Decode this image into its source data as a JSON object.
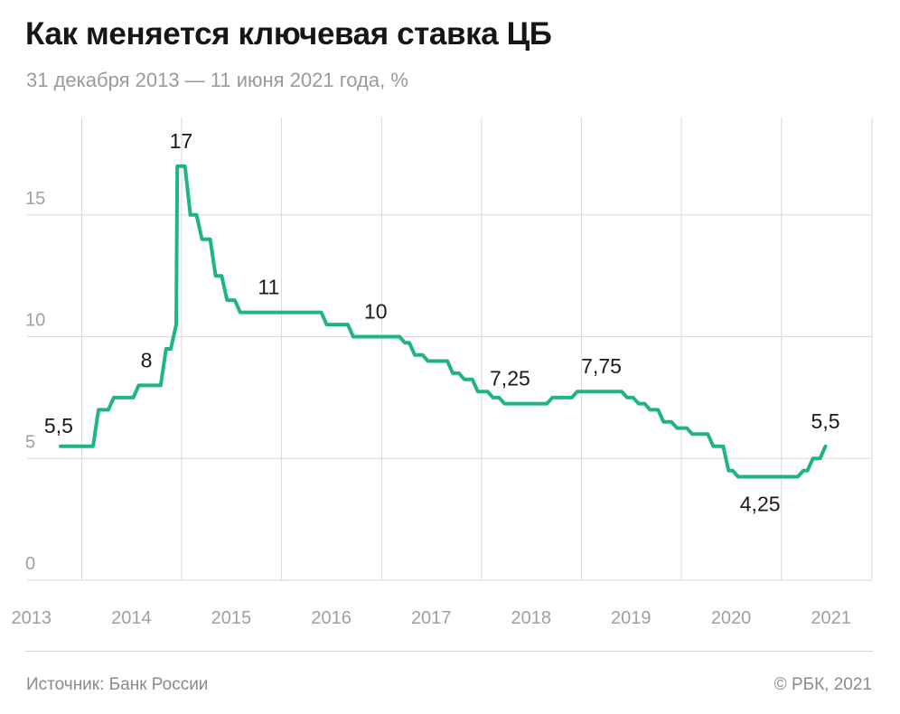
{
  "title": "Как меняется ключевая ставка ЦБ",
  "subtitle": "31 декабря 2013 — 11 июня 2021 года, %",
  "footer": {
    "source": "Источник: Банк России",
    "copyright": "© РБК, 2021"
  },
  "colors": {
    "line": "#1fb57e",
    "grid": "#dadada",
    "axis_text": "#a0a0a0",
    "label_text": "#1a1a1a"
  },
  "chart_data": {
    "type": "line",
    "title": "Как меняется ключевая ставка ЦБ",
    "subtitle": "31 декабря 2013 — 11 июня 2021 года, %",
    "x_type": "date",
    "xlim": [
      "2013-01-01",
      "2021-12-31"
    ],
    "ylim": [
      0,
      19
    ],
    "yticks": [
      0,
      5,
      10,
      15
    ],
    "ytick_labels": [
      "0",
      "5",
      "10",
      "15"
    ],
    "xticks": [
      "2013",
      "2014",
      "2015",
      "2016",
      "2017",
      "2018",
      "2019",
      "2020",
      "2021"
    ],
    "grid": true,
    "legend": "none",
    "series": [
      {
        "step": true,
        "points": [
          [
            "2013-10-15",
            5.5
          ],
          [
            "2014-03-03",
            7.0
          ],
          [
            "2014-04-28",
            7.5
          ],
          [
            "2014-07-28",
            8.0
          ],
          [
            "2014-11-05",
            9.5
          ],
          [
            "2014-12-12",
            10.5
          ],
          [
            "2014-12-16",
            17.0
          ],
          [
            "2015-02-02",
            15.0
          ],
          [
            "2015-03-16",
            14.0
          ],
          [
            "2015-05-05",
            12.5
          ],
          [
            "2015-06-16",
            11.5
          ],
          [
            "2015-08-03",
            11.0
          ],
          [
            "2016-06-14",
            10.5
          ],
          [
            "2016-09-19",
            10.0
          ],
          [
            "2017-03-27",
            9.75
          ],
          [
            "2017-05-02",
            9.25
          ],
          [
            "2017-06-19",
            9.0
          ],
          [
            "2017-09-18",
            8.5
          ],
          [
            "2017-10-30",
            8.25
          ],
          [
            "2017-12-18",
            7.75
          ],
          [
            "2018-02-12",
            7.5
          ],
          [
            "2018-03-26",
            7.25
          ],
          [
            "2018-09-17",
            7.5
          ],
          [
            "2018-12-17",
            7.75
          ],
          [
            "2019-06-17",
            7.5
          ],
          [
            "2019-07-29",
            7.25
          ],
          [
            "2019-09-09",
            7.0
          ],
          [
            "2019-10-28",
            6.5
          ],
          [
            "2019-12-16",
            6.25
          ],
          [
            "2020-02-10",
            6.0
          ],
          [
            "2020-04-27",
            5.5
          ],
          [
            "2020-06-22",
            4.5
          ],
          [
            "2020-07-27",
            4.25
          ],
          [
            "2021-03-22",
            4.5
          ],
          [
            "2021-04-26",
            5.0
          ],
          [
            "2021-06-11",
            5.5
          ]
        ]
      }
    ],
    "annotations": [
      {
        "date": "2013-10-15",
        "value": 5.5,
        "text": "5,5",
        "pos": "above-left"
      },
      {
        "date": "2014-08-25",
        "value": 8.0,
        "text": "8",
        "pos": "above"
      },
      {
        "date": "2014-12-30",
        "value": 17.0,
        "text": "17",
        "pos": "above"
      },
      {
        "date": "2015-11-15",
        "value": 11.0,
        "text": "11",
        "pos": "above"
      },
      {
        "date": "2016-12-10",
        "value": 10.0,
        "text": "10",
        "pos": "above"
      },
      {
        "date": "2018-04-15",
        "value": 7.25,
        "text": "7,25",
        "pos": "above"
      },
      {
        "date": "2019-03-15",
        "value": 7.75,
        "text": "7,75",
        "pos": "above"
      },
      {
        "date": "2020-10-15",
        "value": 4.25,
        "text": "4,25",
        "pos": "below"
      },
      {
        "date": "2021-06-11",
        "value": 5.5,
        "text": "5,5",
        "pos": "above"
      }
    ]
  }
}
